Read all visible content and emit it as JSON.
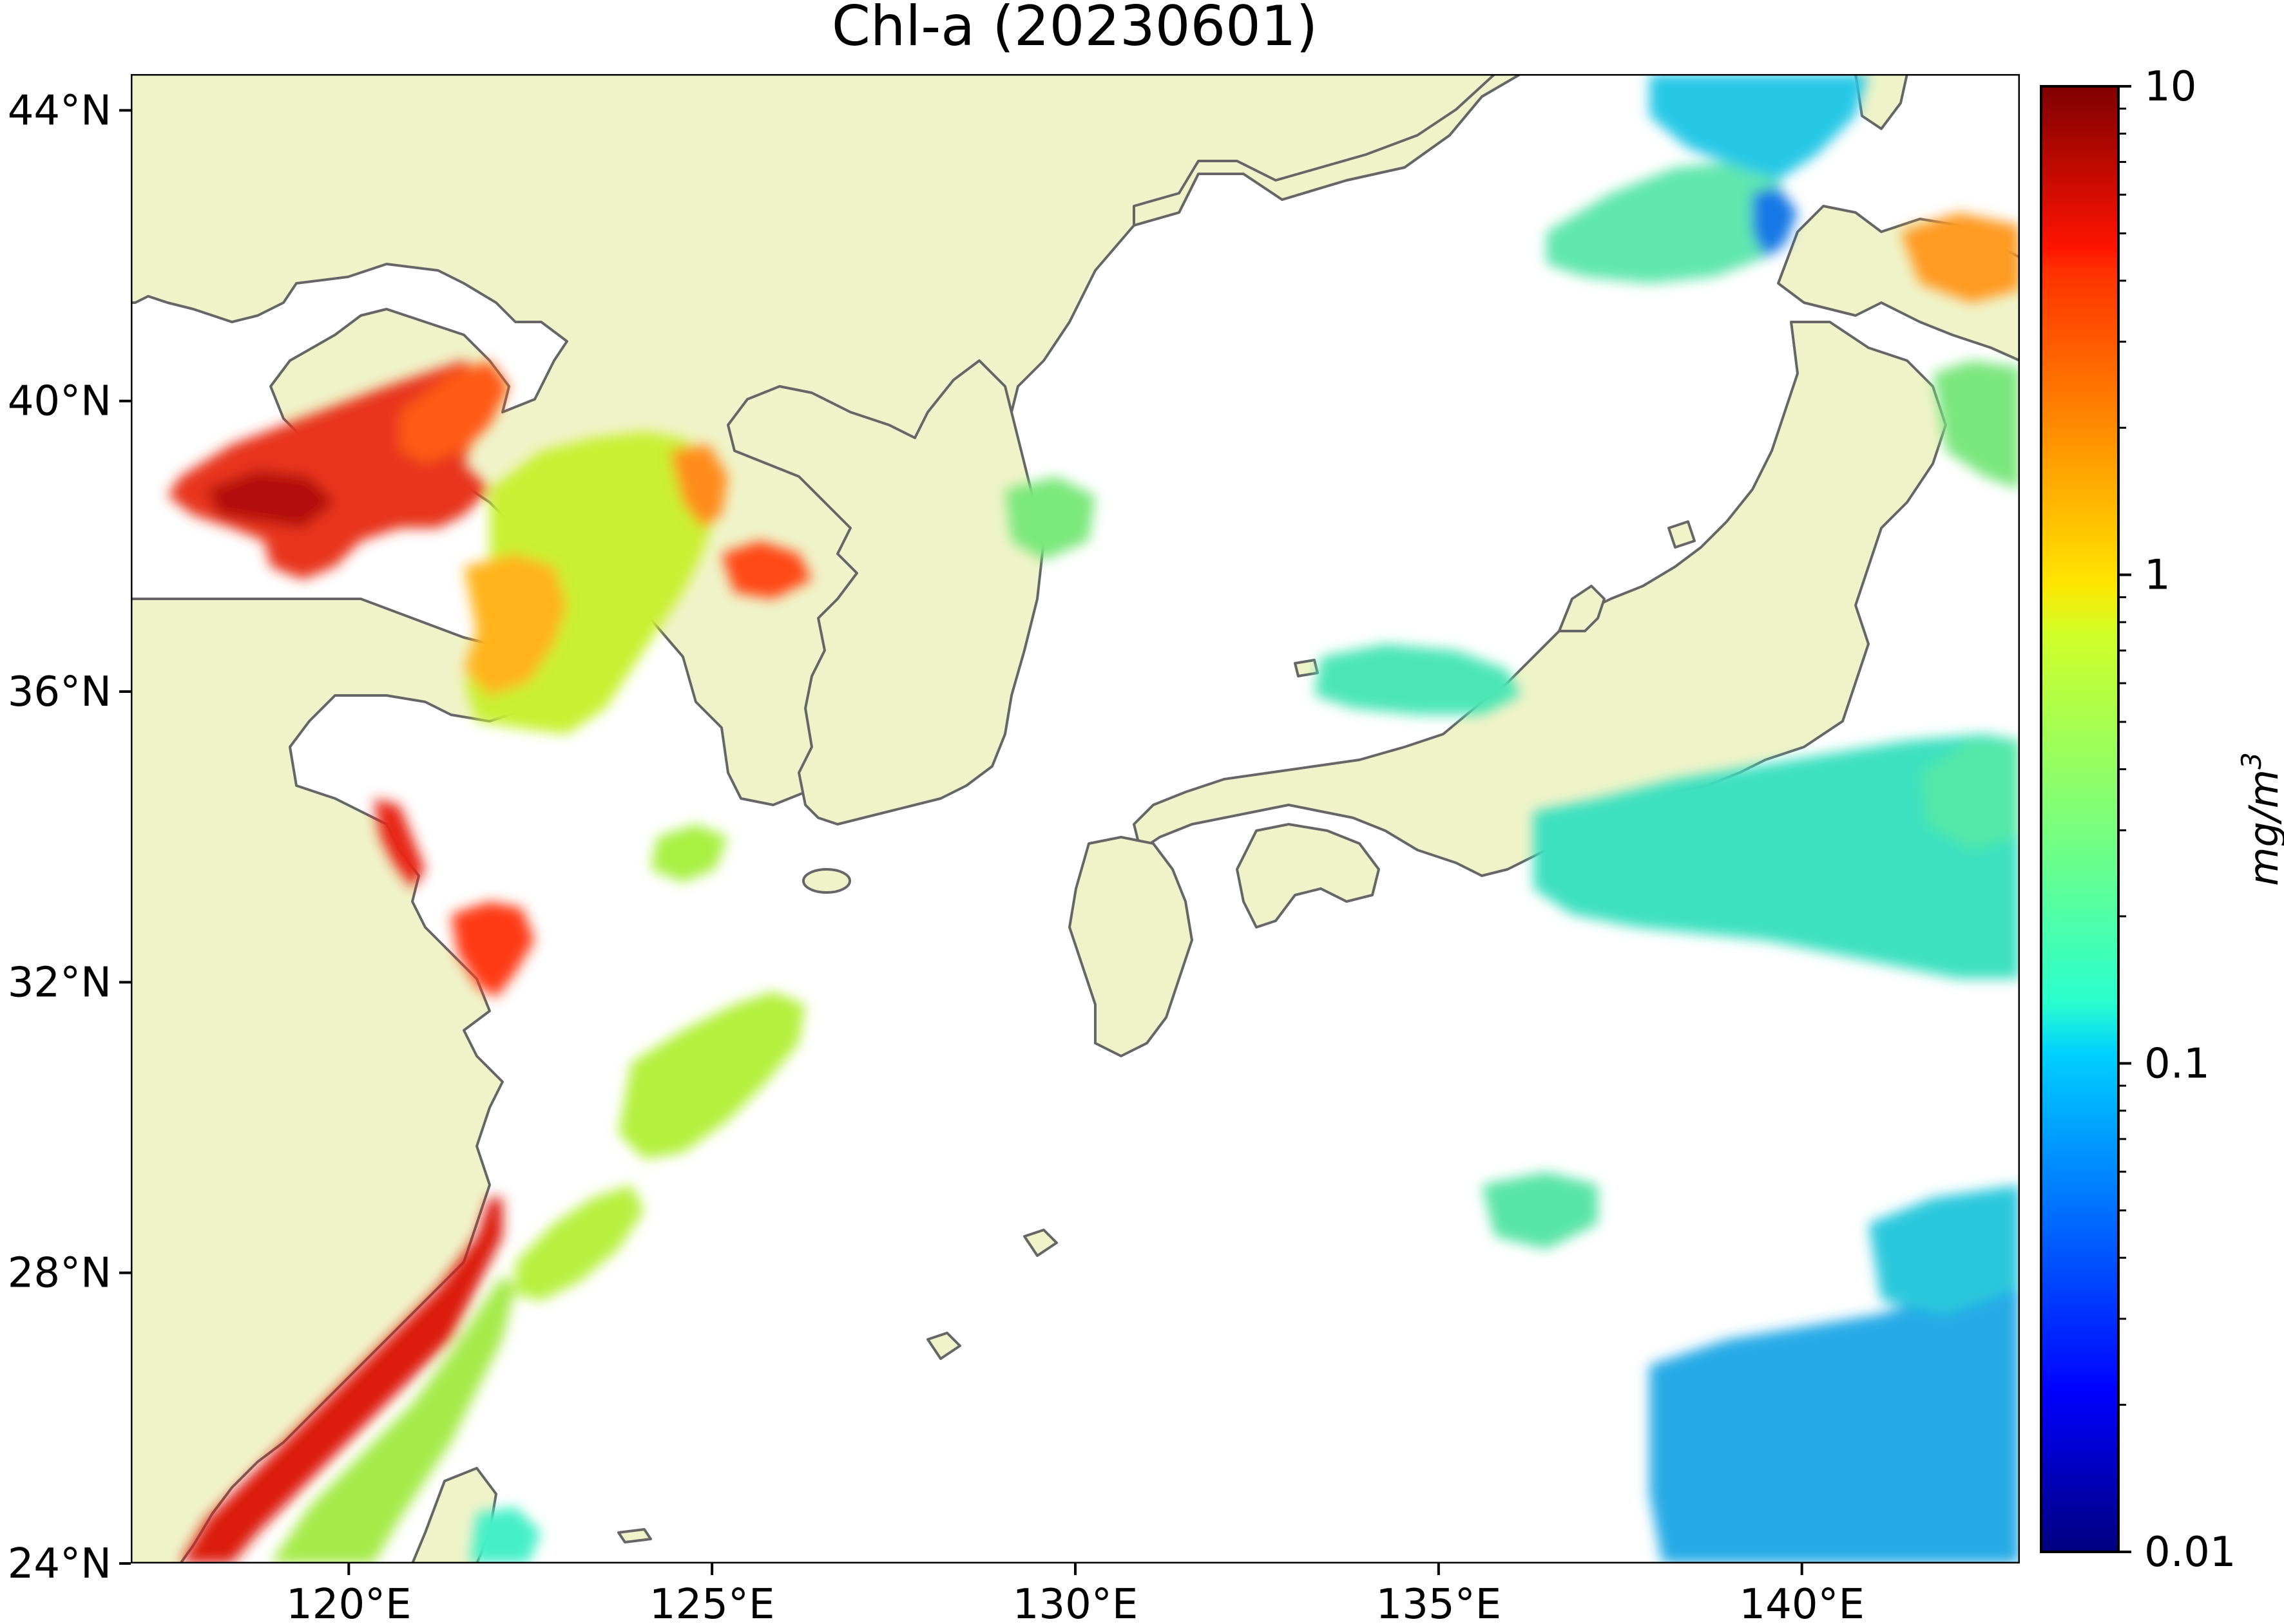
{
  "map": {
    "title": "Chl-a (20230601)",
    "lon_range": [
      117,
      143
    ],
    "lat_range": [
      24,
      44.5
    ],
    "lon_ticks": [
      {
        "value": 120,
        "label": "120°E"
      },
      {
        "value": 125,
        "label": "125°E"
      },
      {
        "value": 130,
        "label": "130°E"
      },
      {
        "value": 135,
        "label": "135°E"
      },
      {
        "value": 140,
        "label": "140°E"
      }
    ],
    "lat_ticks": [
      {
        "value": 44,
        "label": "44°N"
      },
      {
        "value": 40,
        "label": "40°N"
      },
      {
        "value": 36,
        "label": "36°N"
      },
      {
        "value": 32,
        "label": "32°N"
      },
      {
        "value": 28,
        "label": "28°N"
      },
      {
        "value": 24,
        "label": "24°N"
      }
    ],
    "land_color": "#f0f3c9",
    "coast_color": "#666666",
    "ocean_nodata_color": "#ffffff"
  },
  "colorbar": {
    "label": "mg/m",
    "label_superscript": "3",
    "scale": "log",
    "range": [
      0.01,
      10
    ],
    "colormap": "jet",
    "ticks": [
      {
        "value": 10,
        "label": "10"
      },
      {
        "value": 1,
        "label": "1"
      },
      {
        "value": 0.1,
        "label": "0.1"
      },
      {
        "value": 0.01,
        "label": "0.01"
      }
    ]
  }
}
